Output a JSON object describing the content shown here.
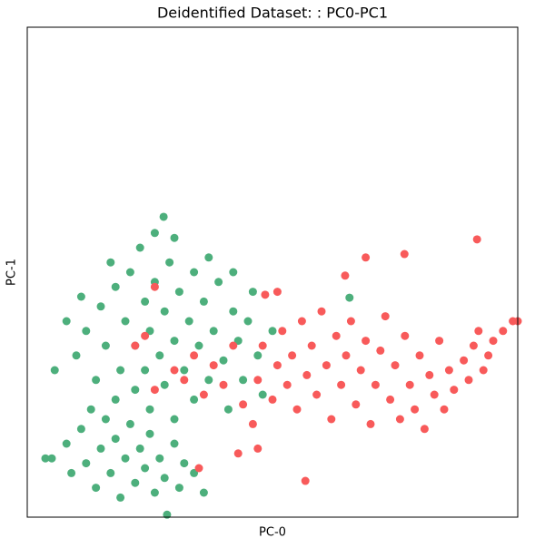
{
  "chart_data": {
    "type": "scatter",
    "title": "Deidentified Dataset: : PC0-PC1",
    "xlabel": "PC-0",
    "ylabel": "PC-1",
    "xlim": [
      0,
      100
    ],
    "ylim": [
      0,
      100
    ],
    "series": [
      {
        "color": "#4daf7c",
        "x": [
          10,
          12,
          14,
          15,
          16,
          18,
          18,
          19,
          20,
          21,
          22,
          22,
          24,
          24,
          25,
          25,
          26,
          27,
          28,
          28,
          29,
          30,
          30,
          31,
          32,
          33,
          34,
          34,
          35,
          36,
          37,
          38,
          39,
          40,
          41,
          42,
          43,
          44,
          45,
          46,
          47,
          48,
          50,
          8,
          11,
          13,
          17,
          23,
          37,
          42,
          5.6,
          30,
          26,
          5,
          8,
          9,
          11,
          12,
          14,
          15,
          16,
          17,
          18,
          19,
          20,
          21,
          22,
          23,
          24,
          25,
          26,
          27,
          28,
          30,
          31,
          32,
          34,
          36,
          3.7,
          27.8,
          28.5,
          65.7
        ],
        "y": [
          33,
          38,
          28,
          43,
          35,
          24,
          47,
          30,
          40,
          50,
          35,
          26,
          44,
          30,
          38,
          22,
          48,
          33,
          42,
          27,
          52,
          36,
          20,
          46,
          30,
          40,
          24,
          50,
          35,
          44,
          28,
          38,
          48,
          32,
          22,
          42,
          36,
          28,
          40,
          46,
          33,
          25,
          38,
          40,
          45,
          22,
          52,
          55,
          53,
          50,
          30,
          57,
          58,
          12,
          15,
          9,
          18,
          11,
          6,
          14,
          20,
          9,
          16,
          4,
          12,
          19,
          7,
          14,
          10,
          17,
          5,
          12,
          8,
          15,
          6,
          11,
          9,
          5,
          12,
          61.3,
          0.5,
          44.8
        ]
      },
      {
        "color": "#f85a5a",
        "x": [
          47,
          48,
          50,
          51,
          52,
          53,
          54,
          55,
          56,
          57,
          58,
          59,
          60,
          61,
          62,
          63,
          64,
          65,
          66,
          67,
          68,
          69,
          70,
          71,
          72,
          73,
          74,
          75,
          76,
          77,
          78,
          79,
          80,
          81,
          82,
          83,
          84,
          85,
          86,
          87,
          89,
          91,
          93,
          95,
          97,
          99,
          100,
          90,
          92,
          94,
          32,
          34,
          36,
          38,
          40,
          42,
          44,
          30,
          22,
          24,
          26,
          46,
          91.7,
          56.7,
          76.9,
          69,
          64.8,
          51,
          48.5,
          26,
          35,
          43,
          47
        ],
        "y": [
          28,
          35,
          24,
          31,
          38,
          27,
          33,
          22,
          40,
          29,
          35,
          25,
          42,
          31,
          20,
          37,
          27,
          33,
          40,
          23,
          30,
          36,
          19,
          27,
          34,
          41,
          24,
          31,
          20,
          37,
          27,
          22,
          33,
          18,
          29,
          25,
          36,
          22,
          30,
          26,
          32,
          35,
          30,
          36,
          38,
          40,
          40,
          28,
          38,
          33,
          28,
          33,
          25,
          31,
          27,
          35,
          23,
          30,
          35,
          37,
          26,
          19,
          56.7,
          7.4,
          53.7,
          53,
          49.3,
          46,
          45.4,
          47,
          10,
          13,
          14
        ]
      }
    ]
  }
}
